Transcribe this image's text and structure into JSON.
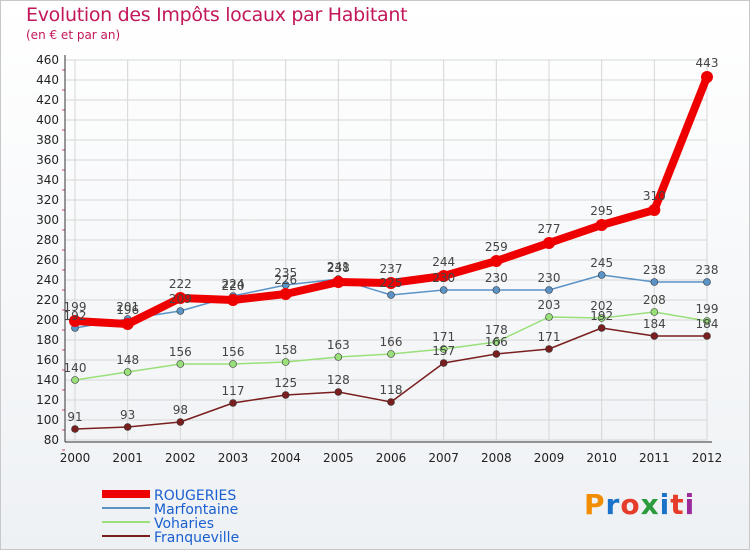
{
  "title": "Evolution des Impôts locaux par Habitant",
  "subtitle": "(en € et par an)",
  "logo": [
    "P",
    "r",
    "o",
    "x",
    "i",
    "t",
    "i"
  ],
  "logo_colors": [
    "#f28c00",
    "#1a73c9",
    "#e63d2a",
    "#2c9b3c",
    "#1a73c9",
    "#e63d2a",
    "#9b2a9b"
  ],
  "chart_data": {
    "type": "line",
    "x": [
      "2000",
      "2001",
      "2002",
      "2003",
      "2004",
      "2005",
      "2006",
      "2007",
      "2008",
      "2009",
      "2010",
      "2011",
      "2012"
    ],
    "ylim": [
      80,
      460
    ],
    "yticks": [
      80,
      100,
      120,
      140,
      160,
      180,
      200,
      220,
      240,
      260,
      280,
      300,
      320,
      340,
      360,
      380,
      400,
      420,
      440,
      460
    ],
    "grid": true,
    "legend_position": "bottom-left",
    "series": [
      {
        "name": "ROUGERIES",
        "color": "#ee0000",
        "values": [
          199,
          196,
          222,
          220,
          226,
          238,
          237,
          244,
          259,
          277,
          295,
          310,
          443
        ],
        "labels": [
          "199",
          "196",
          "222",
          "220",
          "226",
          "238",
          "237",
          "244",
          "259",
          "277",
          "295",
          "310",
          "443"
        ]
      },
      {
        "name": "Marfontaine",
        "color": "#5b93c7",
        "values": [
          192,
          201,
          209,
          224,
          235,
          241,
          225,
          230,
          230,
          230,
          245,
          238,
          238
        ],
        "labels": [
          "192",
          "201",
          "209",
          "224",
          "235",
          "241",
          "225",
          "230",
          "230",
          "230",
          "245",
          "238",
          "238"
        ]
      },
      {
        "name": "Voharies",
        "color": "#99e07a",
        "values": [
          140,
          148,
          156,
          156,
          158,
          163,
          166,
          171,
          178,
          203,
          202,
          208,
          199
        ],
        "labels": [
          "140",
          "148",
          "156",
          "156",
          "158",
          "163",
          "166",
          "171",
          "178",
          "203",
          "202",
          "208",
          "199"
        ]
      },
      {
        "name": "Franqueville",
        "color": "#7a1f1f",
        "values": [
          91,
          93,
          98,
          117,
          125,
          128,
          118,
          157,
          166,
          171,
          192,
          184,
          184
        ],
        "labels": [
          "91",
          "93",
          "98",
          "117",
          "125",
          "128",
          "118",
          "157",
          "166",
          "171",
          "192",
          "184",
          "184"
        ]
      }
    ]
  }
}
